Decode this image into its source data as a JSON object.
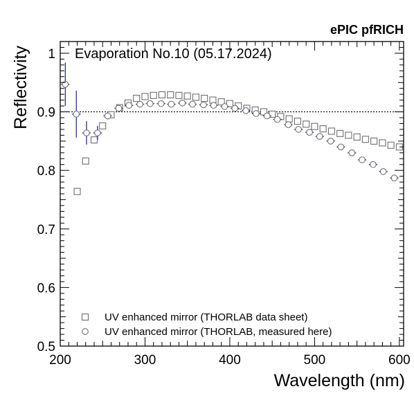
{
  "header": {
    "label": "ePIC pfRICH"
  },
  "chart_data": {
    "type": "scatter",
    "title": "Evaporation No.10 (05.17.2024)",
    "xlabel": "Wavelength (nm)",
    "ylabel": "Reflectivity",
    "xlim": [
      200,
      605
    ],
    "ylim": [
      0.5,
      1.02
    ],
    "xticks": [
      200,
      300,
      400,
      500,
      600
    ],
    "xtick_labels": [
      "200",
      "300",
      "400",
      "500",
      "600"
    ],
    "yticks": [
      0.5,
      0.6,
      0.7,
      0.8,
      0.9,
      1.0
    ],
    "ytick_labels": [
      "0.5",
      "0.6",
      "0.7",
      "0.8",
      "0.9",
      "1"
    ],
    "reference_line": {
      "y": 0.9,
      "style": "dotted"
    },
    "legend_position": "bottom-left",
    "grid": false,
    "colors": {
      "measured_error_bar": "#2b2f8a",
      "marker": "#6e6e6e"
    },
    "series": [
      {
        "name": "UV enhanced mirror (THORLAB data sheet)",
        "marker": "open-square",
        "x": [
          220,
          230,
          240,
          250,
          260,
          270,
          280,
          290,
          300,
          310,
          320,
          330,
          340,
          350,
          360,
          370,
          380,
          390,
          400,
          410,
          420,
          430,
          440,
          450,
          460,
          470,
          480,
          490,
          500,
          510,
          520,
          530,
          540,
          550,
          560,
          570,
          580,
          590,
          600
        ],
        "y": [
          0.764,
          0.816,
          0.852,
          0.876,
          0.895,
          0.907,
          0.915,
          0.923,
          0.926,
          0.928,
          0.929,
          0.929,
          0.928,
          0.927,
          0.925,
          0.923,
          0.92,
          0.917,
          0.914,
          0.91,
          0.906,
          0.903,
          0.9,
          0.896,
          0.892,
          0.888,
          0.884,
          0.879,
          0.875,
          0.871,
          0.867,
          0.863,
          0.86,
          0.857,
          0.853,
          0.85,
          0.847,
          0.843,
          0.84
        ]
      },
      {
        "name": "UV enhanced mirror (THORLAB, measured here)",
        "marker": "open-circle",
        "x": [
          206,
          219,
          231,
          244,
          256,
          269,
          281,
          294,
          306,
          319,
          331,
          344,
          356,
          369,
          381,
          394,
          406,
          419,
          431,
          444,
          456,
          469,
          481,
          494,
          506,
          519,
          531,
          544,
          556,
          569,
          581,
          594
        ],
        "y": [
          0.947,
          0.896,
          0.864,
          0.864,
          0.893,
          0.906,
          0.911,
          0.913,
          0.914,
          0.914,
          0.913,
          0.915,
          0.913,
          0.912,
          0.911,
          0.909,
          0.906,
          0.902,
          0.897,
          0.893,
          0.887,
          0.878,
          0.87,
          0.865,
          0.858,
          0.85,
          0.84,
          0.83,
          0.818,
          0.81,
          0.798,
          0.787
        ],
        "yerr": [
          0.037,
          0.04,
          0.02,
          0.012,
          0.006,
          0.005,
          0.004,
          0.004,
          0.003,
          0.003,
          0.003,
          0.003,
          0.003,
          0.003,
          0.003,
          0.003,
          0.003,
          0.004,
          0.004,
          0.004,
          0.004,
          0.004,
          0.004,
          0.004,
          0.004,
          0.004,
          0.005,
          0.005,
          0.005,
          0.005,
          0.005,
          0.005
        ],
        "xerr": [
          5,
          5,
          5,
          5,
          5,
          5,
          5,
          5,
          5,
          5,
          5,
          5,
          5,
          5,
          5,
          5,
          5,
          5,
          5,
          5,
          5,
          5,
          5,
          5,
          5,
          5,
          5,
          5,
          5,
          5,
          5,
          5
        ]
      }
    ]
  }
}
